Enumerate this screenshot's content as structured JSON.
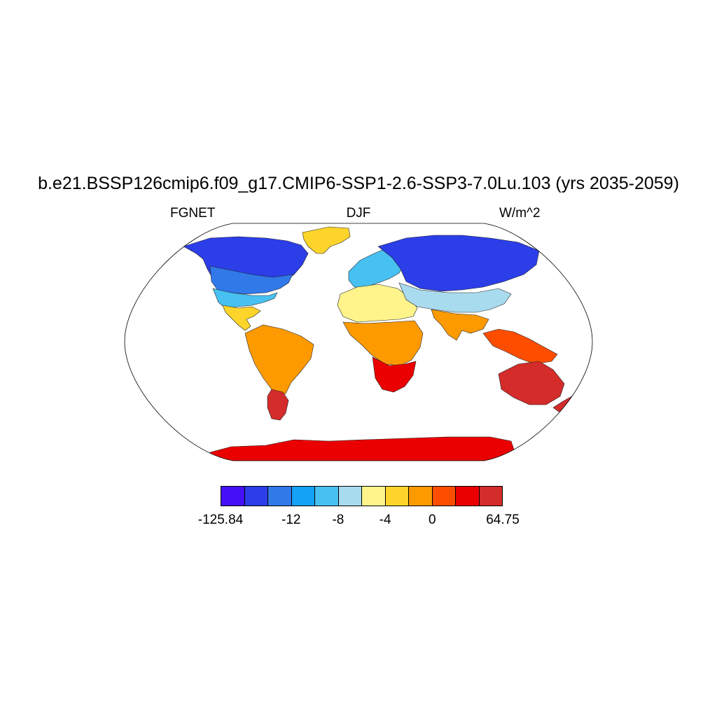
{
  "title": "b.e21.BSSP126cmip6.f09_g17.CMIP6-SSP1-2.6-SSP3-7.0Lu.103 (yrs 2035-2059)",
  "subtitle": {
    "left": "FGNET",
    "center": "DJF",
    "right": "W/m^2"
  },
  "colorbar": {
    "colors": [
      "#4410f5",
      "#2b3ee8",
      "#3178e9",
      "#14a2f7",
      "#47c1f2",
      "#a9dbef",
      "#fff48c",
      "#fdd42a",
      "#fd9a00",
      "#fd4e00",
      "#ea0000",
      "#d42b2b"
    ],
    "labels": [
      "-125.84",
      "-12",
      "-8",
      "-4",
      "0",
      "64.75"
    ]
  },
  "map": {
    "projection": "robinson",
    "land_colors": {
      "north_america_north": "#2b3ee8",
      "north_america_mid": "#3178e9",
      "usa": "#47c1f2",
      "greenland": "#fdd42a",
      "central_america": "#fdd42a",
      "south_america": "#fd9a00",
      "patagonia": "#d42b2b",
      "europe": "#47c1f2",
      "north_africa": "#fff48c",
      "central_africa": "#fd9a00",
      "southern_africa": "#ea0000",
      "siberia": "#2b3ee8",
      "central_asia": "#a9dbef",
      "south_asia": "#fd9a00",
      "southeast_asia": "#fd4e00",
      "australia": "#d42b2b",
      "new_zealand": "#d42b2b",
      "antarctica": "#ea0000"
    }
  }
}
